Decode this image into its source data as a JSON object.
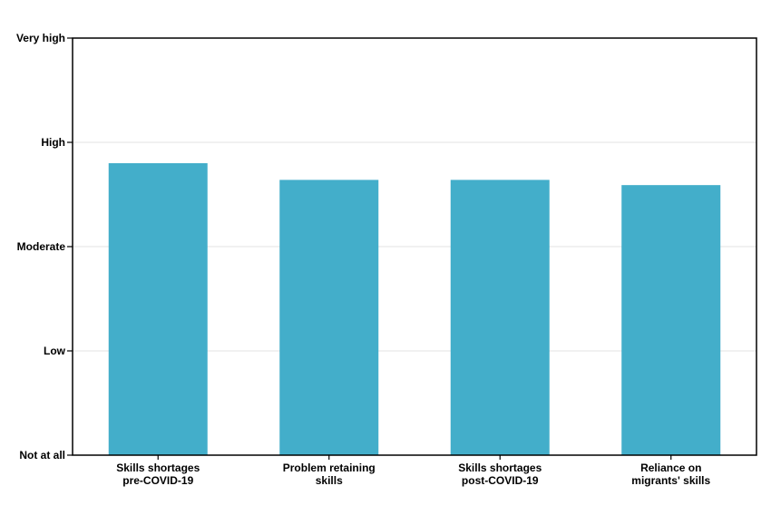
{
  "chart_data": {
    "type": "bar",
    "categories": [
      [
        "Skills shortages",
        "pre-COVID-19"
      ],
      [
        "Problem retaining",
        "skills"
      ],
      [
        "Skills shortages",
        "post-COVID-19"
      ],
      [
        "Reliance on",
        "migrants' skills"
      ]
    ],
    "values": [
      2.8,
      2.64,
      2.64,
      2.59
    ],
    "ylim": [
      0,
      4
    ],
    "yticks": [
      {
        "value": 0,
        "label": "Not at all"
      },
      {
        "value": 1,
        "label": "Low"
      },
      {
        "value": 2,
        "label": "Moderate"
      },
      {
        "value": 3,
        "label": "High"
      },
      {
        "value": 4,
        "label": "Very high"
      }
    ],
    "title": "",
    "xlabel": "",
    "ylabel": "",
    "grid": true,
    "legend": "none",
    "colors": {
      "bar": "#43AECA",
      "grid": "#E3E3E3",
      "axis": "#000000"
    }
  }
}
